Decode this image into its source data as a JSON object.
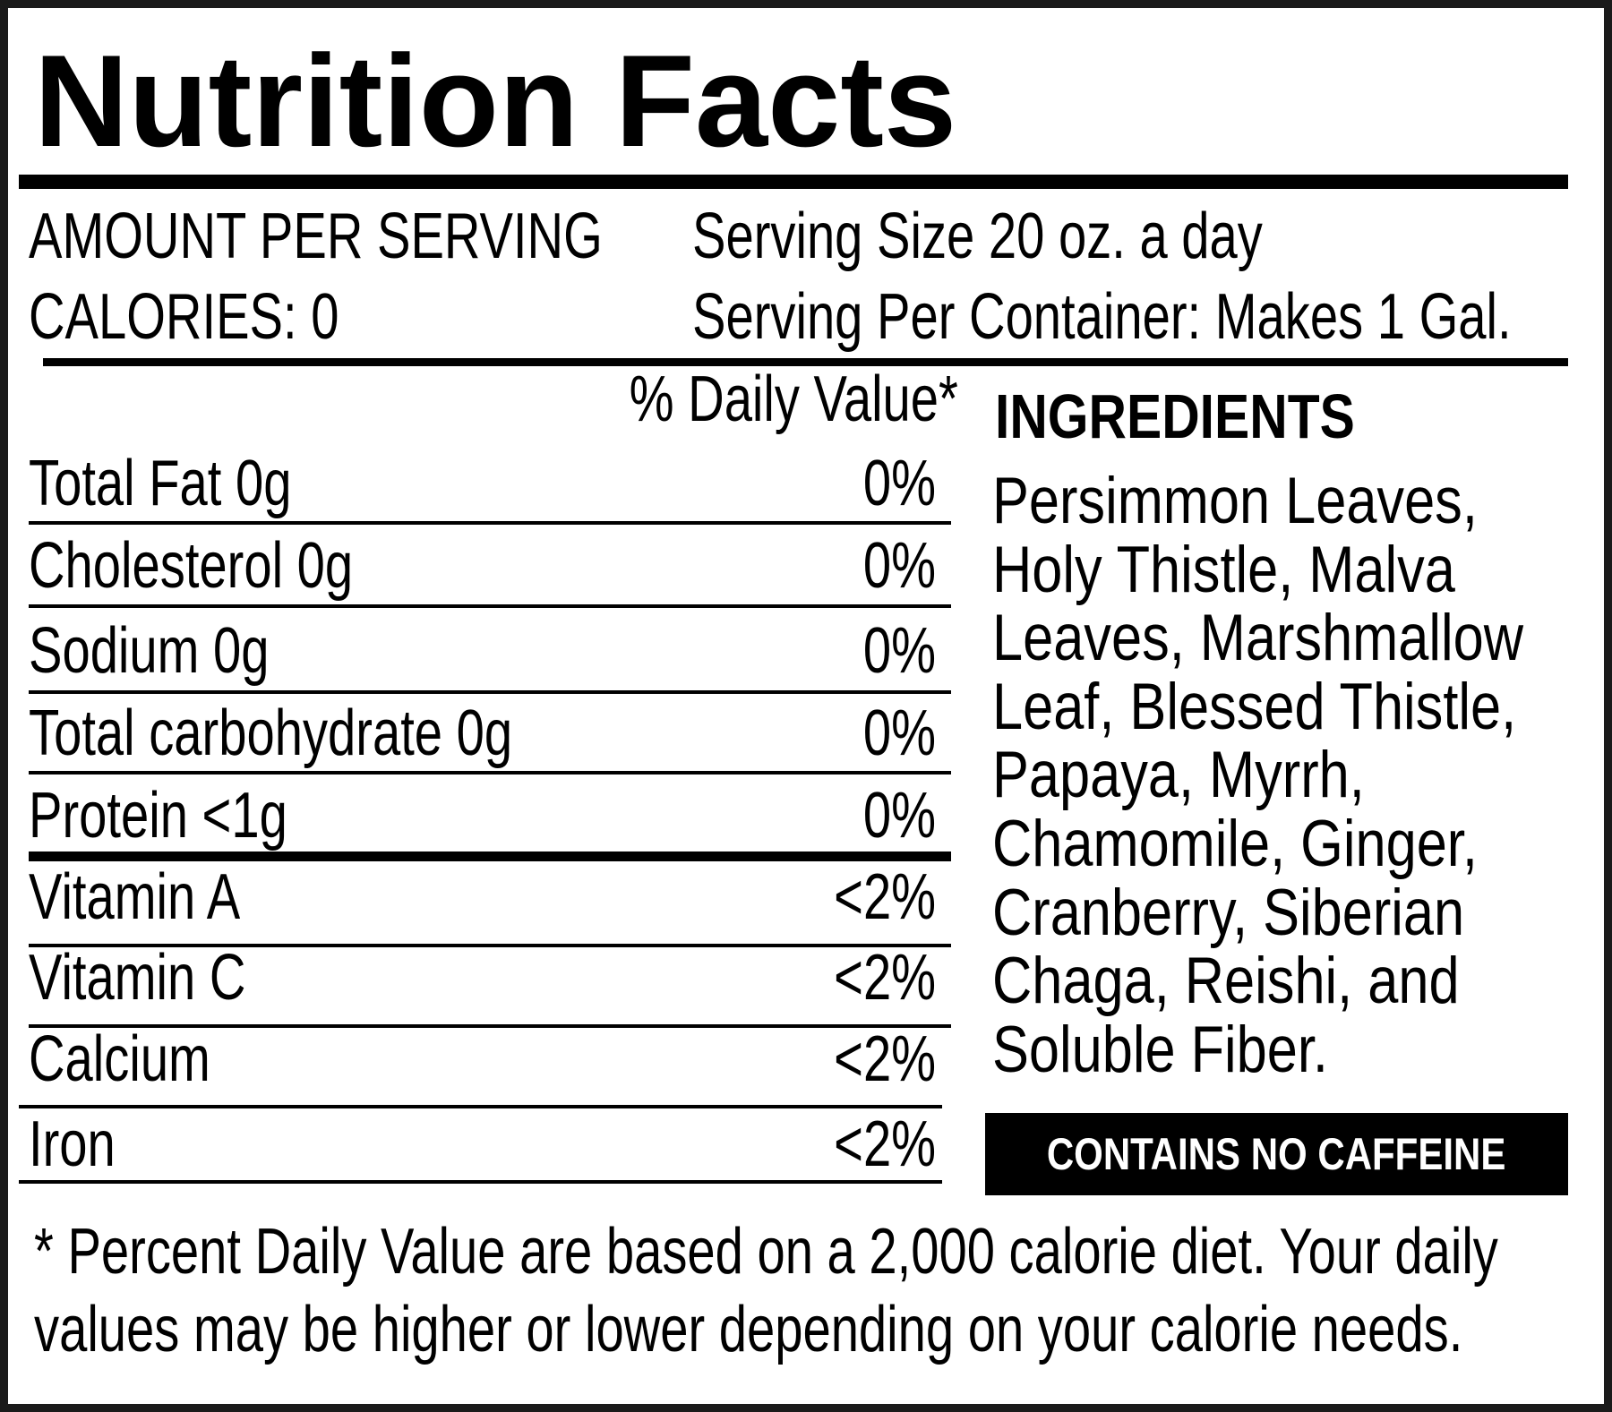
{
  "title": "Nutrition Facts",
  "header": {
    "amount_per_serving": "AMOUNT PER SERVING",
    "calories": "CALORIES: 0",
    "serving_size": "Serving Size 20 oz. a day",
    "servings_per_container": "Serving Per Container: Makes 1 Gal."
  },
  "daily_value_header": "% Daily Value*",
  "nutrients": [
    {
      "label": "Total Fat 0g",
      "dv": "0%"
    },
    {
      "label": "Cholesterol 0g",
      "dv": "0%"
    },
    {
      "label": "Sodium 0g",
      "dv": "0%"
    },
    {
      "label": "Total carbohydrate 0g",
      "dv": "0%"
    },
    {
      "label": "Protein <1g",
      "dv": "0%"
    },
    {
      "label": "Vitamin A",
      "dv": "<2%"
    },
    {
      "label": "Vitamin C",
      "dv": "<2%"
    },
    {
      "label": "Calcium",
      "dv": "<2%"
    },
    {
      "label": "Iron",
      "dv": "<2%"
    }
  ],
  "ingredients": {
    "heading": "INGREDIENTS",
    "lines": [
      "Persimmon Leaves,",
      "Holy Thistle, Malva",
      "Leaves, Marshmallow",
      "Leaf, Blessed Thistle,",
      "Papaya, Myrrh,",
      "Chamomile, Ginger,",
      "Cranberry, Siberian",
      "Chaga, Reishi, and",
      "Soluble Fiber."
    ]
  },
  "caffeine_badge": "CONTAINS NO CAFFEINE",
  "footnote": {
    "line1": "* Percent Daily Value are based on a 2,000 calorie diet. Your daily",
    "line2": "values may be higher or lower depending on your calorie needs."
  }
}
